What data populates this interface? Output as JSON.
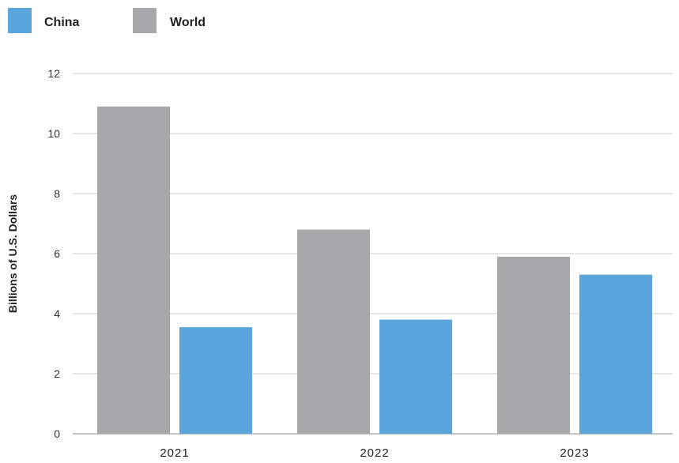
{
  "chart_data": {
    "type": "bar",
    "title": "",
    "xlabel": "",
    "ylabel": "Billions of U.S. Dollars",
    "categories": [
      "2021",
      "2022",
      "2023"
    ],
    "series": [
      {
        "name": "World",
        "color": "#a7a8aa",
        "values": [
          10.9,
          6.8,
          5.9
        ]
      },
      {
        "name": "China",
        "color": "#5aa6dc",
        "values": [
          3.55,
          3.8,
          5.3
        ]
      }
    ],
    "legend_order": [
      "China",
      "World"
    ],
    "yticks": [
      0,
      2,
      4,
      6,
      8,
      10,
      12
    ],
    "ylim": [
      0,
      12
    ],
    "grid": true,
    "legend_position": "top-left"
  }
}
